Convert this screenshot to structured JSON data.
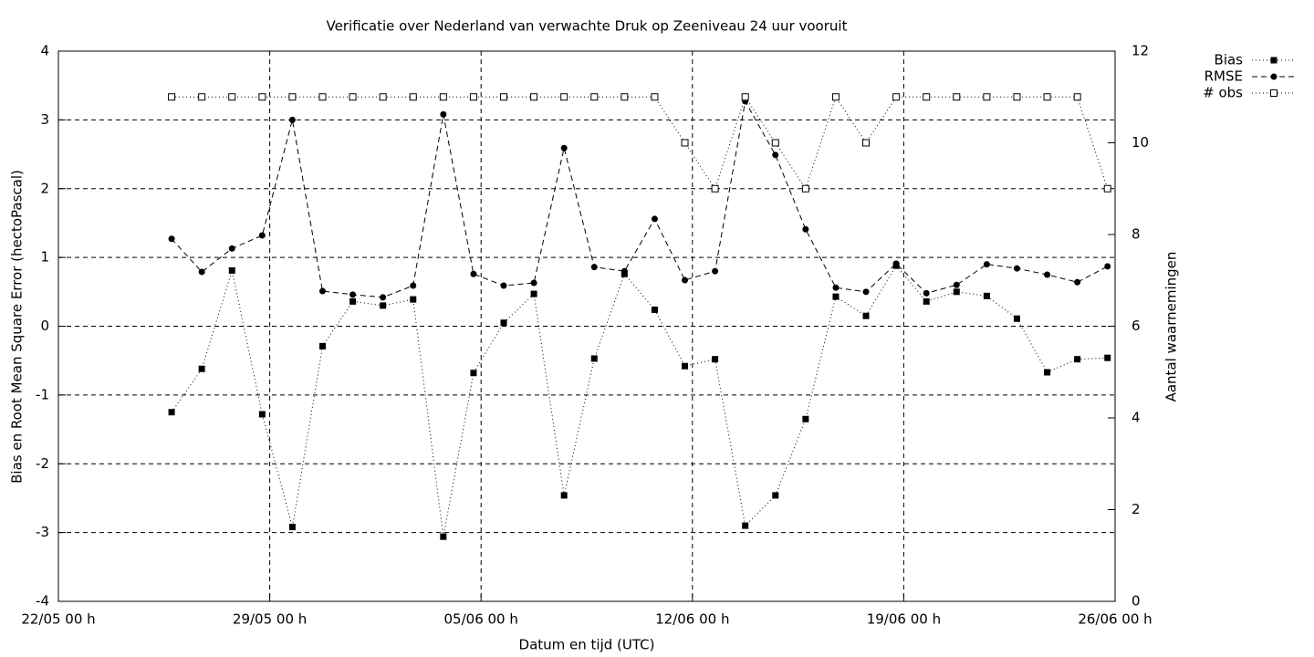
{
  "chart_data": {
    "type": "line",
    "title": "Verificatie over Nederland van verwachte Druk op Zeeniveau 24 uur vooruit",
    "xlabel": "Datum en tijd (UTC)",
    "ylabel": "Bias en Root Mean Square Error (hectoPascal)",
    "y2label": "Aantal waarnemingen",
    "x": [
      3.75,
      4.75,
      5.75,
      6.75,
      7.75,
      8.75,
      9.75,
      10.75,
      11.75,
      12.75,
      13.75,
      14.75,
      15.75,
      16.75,
      17.75,
      18.75,
      19.75,
      20.75,
      21.75,
      22.75,
      23.75,
      24.75,
      25.75,
      26.75,
      27.75,
      28.75,
      29.75,
      30.75,
      31.75,
      32.75,
      33.75,
      34.75
    ],
    "xlim": [
      0,
      35
    ],
    "xticks": [
      {
        "value": 0,
        "label": "22/05 00 h"
      },
      {
        "value": 7,
        "label": "29/05 00 h"
      },
      {
        "value": 14,
        "label": "05/06 00 h"
      },
      {
        "value": 21,
        "label": "12/06 00 h"
      },
      {
        "value": 28,
        "label": "19/06 00 h"
      },
      {
        "value": 35,
        "label": "26/06 00 h"
      }
    ],
    "ylim": [
      -4,
      4
    ],
    "yticks": [
      -4,
      -3,
      -2,
      -1,
      0,
      1,
      2,
      3,
      4
    ],
    "y2lim": [
      0,
      12
    ],
    "y2ticks": [
      0,
      2,
      4,
      6,
      8,
      10,
      12
    ],
    "grid": true,
    "legend": "outside-right-top",
    "series": [
      {
        "name": "Bias",
        "color": "#000000",
        "style": "dotted",
        "marker": "filled-square",
        "values": [
          -1.25,
          -0.62,
          0.81,
          -1.28,
          -2.92,
          -0.29,
          0.36,
          0.3,
          0.39,
          -3.06,
          -0.68,
          0.05,
          0.47,
          -2.46,
          -0.47,
          0.76,
          0.24,
          -0.58,
          -0.48,
          -2.9,
          -2.46,
          -1.35,
          0.43,
          0.15,
          0.88,
          0.36,
          0.5,
          0.44,
          0.11,
          -0.67,
          -0.48,
          -0.46
        ]
      },
      {
        "name": "RMSE",
        "color": "#000000",
        "style": "dashed",
        "marker": "filled-circle",
        "values": [
          1.27,
          0.79,
          1.13,
          1.32,
          3.0,
          0.51,
          0.46,
          0.42,
          0.59,
          3.08,
          0.76,
          0.59,
          0.63,
          2.59,
          0.86,
          0.8,
          1.56,
          0.67,
          0.8,
          3.27,
          2.49,
          1.41,
          0.56,
          0.5,
          0.91,
          0.48,
          0.6,
          0.9,
          0.84,
          0.75,
          0.64,
          0.87
        ]
      },
      {
        "name": "# obs",
        "color": "#000000",
        "style": "dotted",
        "marker": "open-square",
        "axis": "y2",
        "values": [
          11,
          11,
          11,
          11,
          11,
          11,
          11,
          11,
          11,
          11,
          11,
          11,
          11,
          11,
          11,
          11,
          11,
          10,
          9,
          11,
          10,
          9,
          11,
          10,
          11,
          11,
          11,
          11,
          11,
          11,
          11,
          9
        ]
      }
    ]
  }
}
